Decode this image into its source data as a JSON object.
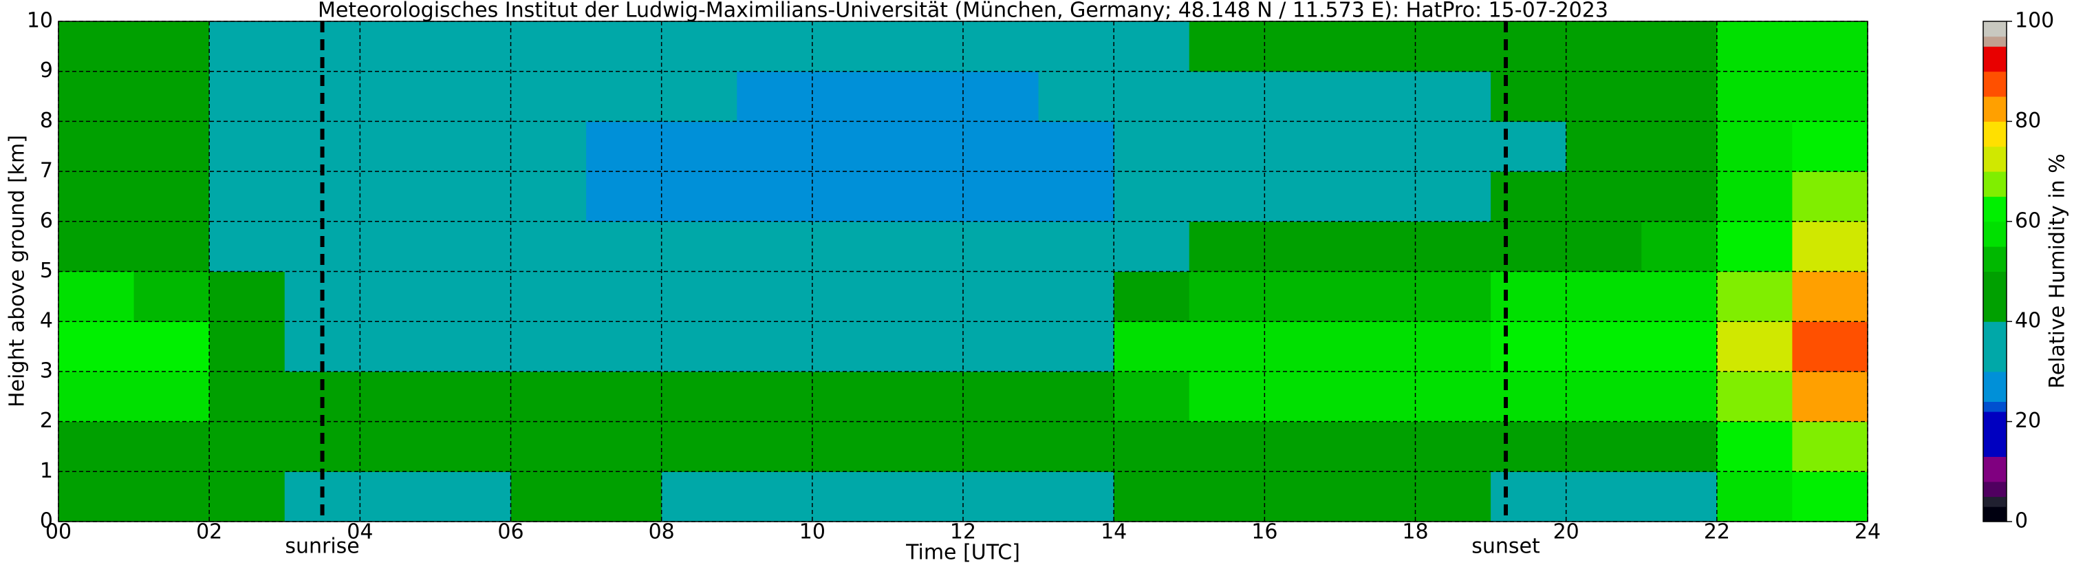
{
  "chart_data": {
    "type": "heatmap",
    "title": "Meteorologisches Institut der Ludwig-Maximilians-Universität (München, Germany; 48.148 N / 11.573 E):    HatPro: 15-07-2023",
    "x_label": "Time [UTC]",
    "y_label": "Height above ground [km]",
    "x": [
      0,
      1,
      2,
      3,
      4,
      5,
      6,
      7,
      8,
      9,
      10,
      11,
      12,
      13,
      14,
      15,
      16,
      17,
      18,
      19,
      20,
      21,
      22,
      23,
      24
    ],
    "y": [
      0,
      1,
      2,
      3,
      4,
      5,
      6,
      7,
      8,
      9,
      10
    ],
    "values": [
      [
        45,
        47,
        58,
        60,
        55,
        48,
        40,
        40,
        40,
        40
      ],
      [
        44,
        47,
        57,
        60,
        54,
        47,
        40,
        40,
        40,
        40
      ],
      [
        40,
        45,
        48,
        45,
        40,
        38,
        37,
        37,
        37,
        37
      ],
      [
        38,
        40,
        48,
        38,
        36,
        36,
        36,
        36,
        36,
        37
      ],
      [
        37,
        40,
        45,
        37,
        36,
        35,
        35,
        35,
        36,
        37
      ],
      [
        37,
        40,
        45,
        36,
        35,
        35,
        34,
        35,
        36,
        37
      ],
      [
        40,
        42,
        45,
        35,
        35,
        31,
        30,
        30,
        32,
        34
      ],
      [
        40,
        42,
        45,
        34,
        33,
        30,
        28,
        28,
        30,
        33
      ],
      [
        36,
        43,
        46,
        34,
        33,
        30,
        27,
        27,
        30,
        33
      ],
      [
        36,
        42,
        45,
        34,
        33,
        30,
        27,
        27,
        29,
        32
      ],
      [
        36,
        42,
        45,
        34,
        33,
        30,
        27,
        27,
        29,
        32
      ],
      [
        36,
        42,
        45,
        34,
        33,
        30,
        27,
        27,
        29,
        32
      ],
      [
        36,
        42,
        45,
        34,
        33,
        30,
        27,
        27,
        29,
        32
      ],
      [
        36,
        42,
        45,
        34,
        33,
        30,
        27,
        27,
        30,
        33
      ],
      [
        45,
        48,
        52,
        55,
        48,
        36,
        33,
        33,
        34,
        36
      ],
      [
        45,
        47,
        55,
        58,
        50,
        40,
        37,
        37,
        38,
        40
      ],
      [
        45,
        46,
        55,
        58,
        50,
        42,
        38,
        38,
        39,
        40
      ],
      [
        45,
        47,
        56,
        58,
        51,
        43,
        38,
        38,
        39,
        40
      ],
      [
        44,
        47,
        57,
        59,
        52,
        45,
        39,
        38,
        39,
        40
      ],
      [
        35,
        45,
        58,
        60,
        55,
        47,
        40,
        39,
        40,
        40
      ],
      [
        35,
        45,
        58,
        60,
        55,
        48,
        40,
        40,
        40,
        40
      ],
      [
        36,
        46,
        58,
        62,
        56,
        50,
        42,
        40,
        40,
        40
      ],
      [
        55,
        60,
        65,
        72,
        68,
        62,
        58,
        55,
        55,
        55
      ],
      [
        62,
        68,
        80,
        88,
        80,
        72,
        68,
        62,
        58,
        58
      ]
    ],
    "xlim": [
      0,
      24
    ],
    "ylim": [
      0,
      10
    ],
    "xticks": [
      {
        "value": 0,
        "label": "00"
      },
      {
        "value": 2,
        "label": "02"
      },
      {
        "value": 4,
        "label": "04"
      },
      {
        "value": 6,
        "label": "06"
      },
      {
        "value": 8,
        "label": "08"
      },
      10,
      12,
      14,
      16,
      18,
      20,
      22,
      24
    ],
    "yticks": [
      0,
      1,
      2,
      3,
      4,
      5,
      6,
      7,
      8,
      9,
      10
    ],
    "grid": true,
    "annotations": [
      {
        "text": "sunrise",
        "x": 3.5
      },
      {
        "text": "sunset",
        "x": 19.2
      }
    ],
    "colorbar": {
      "label": "Relative Humidity in %",
      "lim": [
        0,
        100
      ],
      "ticks": [
        0,
        20,
        40,
        60,
        80,
        100
      ],
      "bounds": [
        0,
        3,
        5,
        8,
        13,
        22,
        24,
        30,
        40,
        50,
        55,
        60,
        65,
        70,
        75,
        80,
        85,
        90,
        95,
        97,
        100
      ],
      "colors": [
        "#000010",
        "#202030",
        "#500060",
        "#800080",
        "#0000c0",
        "#0050d0",
        "#0090d8",
        "#00a8a8",
        "#00a000",
        "#00b800",
        "#00e000",
        "#00f000",
        "#80ee00",
        "#d0e800",
        "#ffe000",
        "#ffa000",
        "#ff5000",
        "#e80000",
        "#c0a090",
        "#c8c8c0"
      ]
    }
  }
}
